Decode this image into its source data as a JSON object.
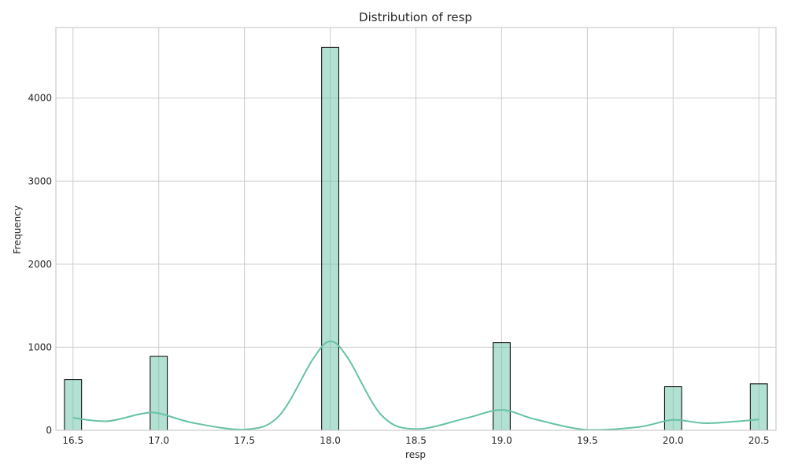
{
  "chart_data": {
    "type": "bar",
    "title": "Distribution of resp",
    "xlabel": "resp",
    "ylabel": "Frequency",
    "xlim": [
      16.4,
      20.6
    ],
    "ylim": [
      0,
      4850
    ],
    "x_ticks": [
      16.5,
      17.0,
      17.5,
      18.0,
      18.5,
      19.0,
      19.5,
      20.0,
      20.5
    ],
    "y_ticks": [
      0,
      1000,
      2000,
      3000,
      4000
    ],
    "grid": true,
    "bin_width": 0.1,
    "bars": [
      {
        "x": 16.5,
        "value": 610
      },
      {
        "x": 17.0,
        "value": 890
      },
      {
        "x": 18.0,
        "value": 4610
      },
      {
        "x": 19.0,
        "value": 1055
      },
      {
        "x": 20.0,
        "value": 525
      },
      {
        "x": 20.5,
        "value": 560
      }
    ],
    "kde": {
      "x": [
        16.5,
        16.7,
        16.9,
        17.0,
        17.2,
        17.5,
        17.7,
        17.9,
        18.0,
        18.1,
        18.3,
        18.5,
        18.8,
        19.0,
        19.2,
        19.5,
        19.8,
        20.0,
        20.2,
        20.5
      ],
      "y": [
        150,
        110,
        200,
        205,
        90,
        10,
        170,
        860,
        1070,
        880,
        180,
        15,
        150,
        245,
        130,
        5,
        40,
        125,
        85,
        130
      ]
    },
    "colors": {
      "bar_fill": "#66c2a5",
      "bar_fill_opacity": 0.5,
      "bar_edge": "#000000",
      "kde_line": "#66c2a5",
      "grid": "#cccccc"
    }
  }
}
